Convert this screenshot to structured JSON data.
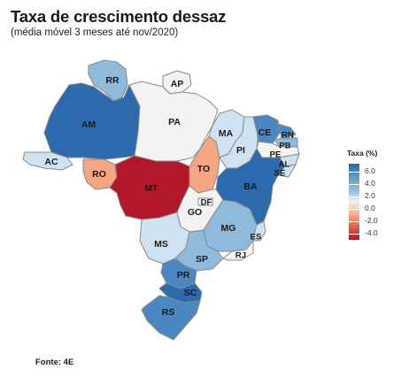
{
  "title": "Taxa de crescimento dessaz",
  "subtitle": "(média móvel 3 meses até nov/2020)",
  "source": "Fonte: 4E",
  "legend": {
    "title": "Taxa (%)",
    "ticks": [
      "6.0",
      "4.0",
      "2.0",
      "0.0",
      "-2.0",
      "-4.0"
    ]
  },
  "states": {
    "RR": "RR",
    "AP": "AP",
    "AM": "AM",
    "PA": "PA",
    "AC": "AC",
    "RO": "RO",
    "MT": "MT",
    "TO": "TO",
    "MA": "MA",
    "PI": "PI",
    "CE": "CE",
    "RN": "RN",
    "PB": "PB",
    "PE": "PE",
    "AL": "AL",
    "SE": "SE",
    "BA": "BA",
    "DF": "DF",
    "GO": "GO",
    "MG": "MG",
    "ES": "ES",
    "MS": "MS",
    "SP": "SP",
    "RJ": "RJ",
    "PR": "PR",
    "SC": "SC",
    "RS": "RS"
  },
  "colors": {
    "strong_blue": "#2c6aad",
    "mid_blue": "#4b87c1",
    "light_blue": "#8fbadc",
    "pale_blue": "#cfe2f1",
    "near_white": "#f3f3f3",
    "light_orange": "#f4a582",
    "dark_red": "#b2182b"
  }
}
